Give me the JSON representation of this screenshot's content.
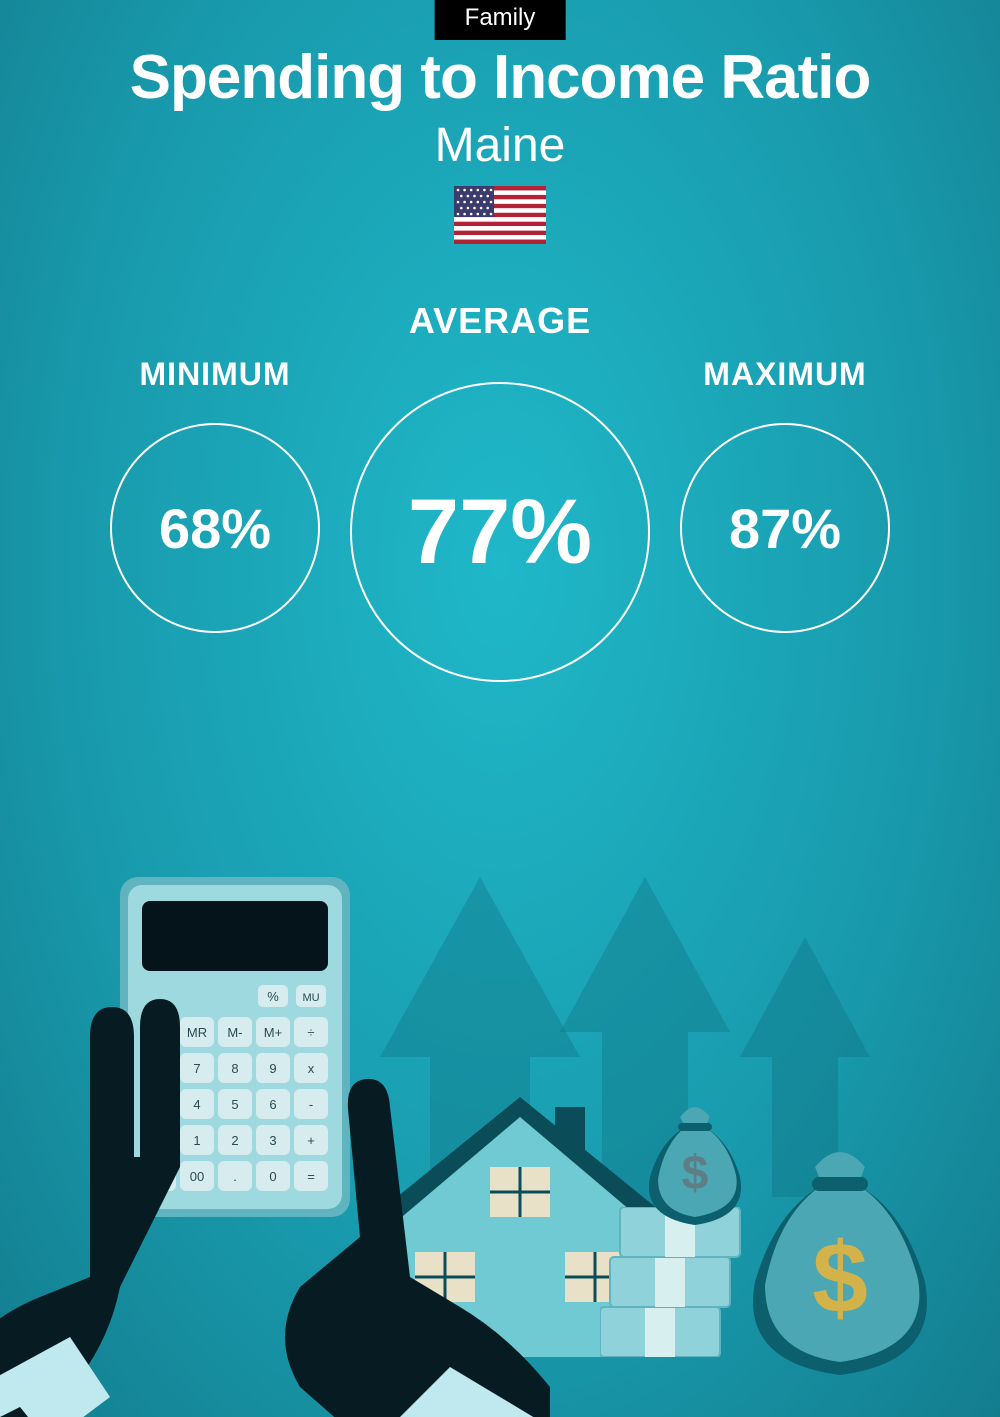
{
  "tag": {
    "label": "Family",
    "bg": "#000000",
    "color": "#ffffff"
  },
  "title": "Spending to Income Ratio",
  "subtitle": "Maine",
  "flag": {
    "canton_bg": "#3c3b6e",
    "stripe_red": "#b22234",
    "stripe_white": "#ffffff",
    "star_color": "#ffffff"
  },
  "background": {
    "gradient_inner": "#1fb8c9",
    "gradient_mid": "#189aac",
    "gradient_outer": "#137d8e"
  },
  "stats": {
    "circle_border_color": "#ffffff",
    "text_color": "#ffffff",
    "minimum": {
      "label": "MINIMUM",
      "value": "68%",
      "label_fontsize": 32,
      "value_fontsize": 56,
      "circle_diameter": 210
    },
    "average": {
      "label": "AVERAGE",
      "value": "77%",
      "label_fontsize": 36,
      "value_fontsize": 92,
      "circle_diameter": 300
    },
    "maximum": {
      "label": "MAXIMUM",
      "value": "87%",
      "label_fontsize": 32,
      "value_fontsize": 56,
      "circle_diameter": 210
    }
  },
  "illustration": {
    "arrow_color": "#0e6f7f",
    "house_wall": "#6fcad4",
    "house_roof": "#0a4d58",
    "house_window": "#e8e1c8",
    "house_chimney": "#0a4d58",
    "hand_dark": "#071b22",
    "cuff_light": "#bfe9ee",
    "calc_body_light": "#9fd9e0",
    "calc_body_dark": "#5fb4bf",
    "calc_screen": "#05141a",
    "calc_key": "#d6ecef",
    "calc_key_text": "#2b4a52",
    "money_stack": "#8fd2d9",
    "money_band": "#d8efef",
    "bag_fill": "#4aa7b3",
    "bag_fill_dark": "#0c5f6c",
    "dollar_gold": "#d4b24a",
    "dollar_dark": "#5f7d85"
  }
}
